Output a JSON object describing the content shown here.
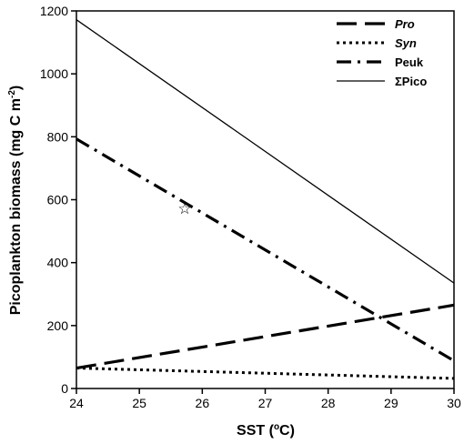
{
  "chart_data": {
    "type": "line",
    "xlabel": "SST (",
    "xlabel_sup": "o",
    "xlabel_unit": "C)",
    "ylabel": "Picoplankton biomass (mg C m",
    "ylabel_sup": "-2",
    "ylabel_end": ")",
    "xlim": [
      24,
      30
    ],
    "ylim": [
      0,
      1200
    ],
    "x_ticks": [
      24,
      25,
      26,
      27,
      28,
      29,
      30
    ],
    "y_ticks": [
      0,
      200,
      400,
      600,
      800,
      1000,
      1200
    ],
    "grid": false,
    "legend_position": "top-right",
    "series": [
      {
        "name": "Pro",
        "italic": true,
        "dash": "long-dash",
        "x": [
          24,
          30
        ],
        "y": [
          65,
          265
        ]
      },
      {
        "name": "Syn",
        "italic": true,
        "dash": "dotted",
        "x": [
          24,
          30
        ],
        "y": [
          65,
          32
        ]
      },
      {
        "name": "Peuk",
        "italic": false,
        "dash": "dash-dot",
        "x": [
          24,
          30
        ],
        "y": [
          793,
          88
        ]
      },
      {
        "name": "ΣPico",
        "italic": false,
        "dash": "solid",
        "x": [
          24,
          30
        ],
        "y": [
          1172,
          335
        ]
      }
    ],
    "annotations": [
      {
        "text": "☆",
        "x": 25.72,
        "y": 572
      }
    ]
  }
}
